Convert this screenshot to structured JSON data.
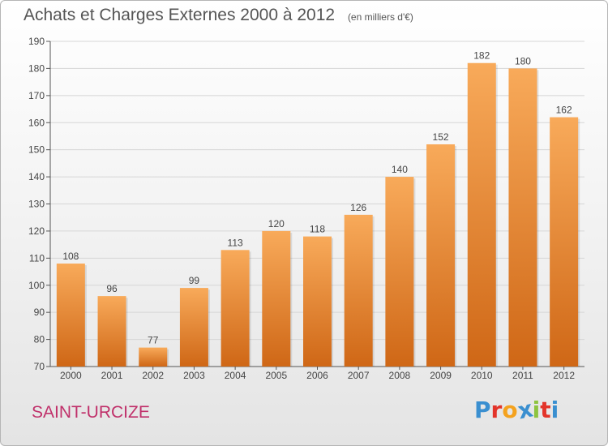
{
  "header": {
    "title": "Achats et Charges Externes 2000 à 2012",
    "unit": "(en milliers d'€)"
  },
  "footer": {
    "commune": "SAINT-URCIZE",
    "logo": "Proxiti",
    "logo_letters": [
      "P",
      "r",
      "o",
      "x",
      "i",
      "t",
      "i"
    ],
    "logo_colors": [
      "#3a8fd0",
      "#e3342a",
      "#f4a21e",
      "#3a8fd0",
      "#8dc43f",
      "#e3342a",
      "#3a8fd0"
    ]
  },
  "colors": {
    "bar_top": "#f8aa5a",
    "bar_bottom": "#cf6716",
    "grid": "#d6d6d6",
    "axis_text": "#444444"
  },
  "chart_data": {
    "type": "bar",
    "title": "Achats et Charges Externes 2000 à 2012",
    "subtitle": "(en milliers d'€)",
    "categories": [
      "2000",
      "2001",
      "2002",
      "2003",
      "2004",
      "2005",
      "2006",
      "2007",
      "2008",
      "2009",
      "2010",
      "2011",
      "2012"
    ],
    "values": [
      108,
      96,
      77,
      99,
      113,
      120,
      118,
      126,
      140,
      152,
      182,
      180,
      162
    ],
    "ylim": [
      70,
      190
    ],
    "yticks": [
      70,
      80,
      90,
      100,
      110,
      120,
      130,
      140,
      150,
      160,
      170,
      180,
      190
    ],
    "grid": true,
    "data_labels": true
  }
}
